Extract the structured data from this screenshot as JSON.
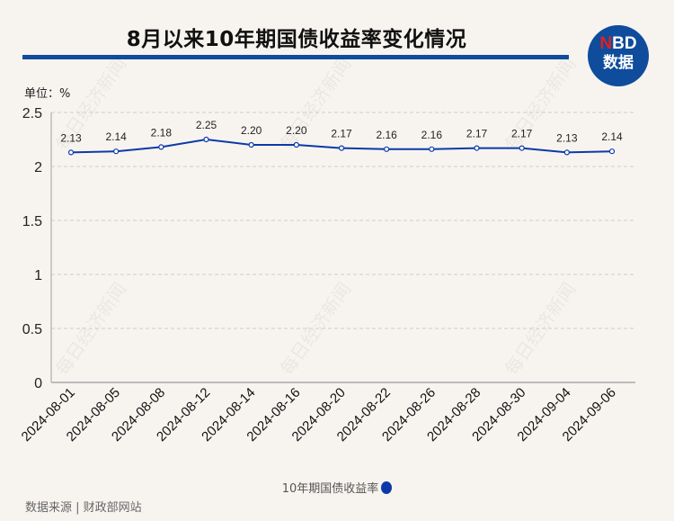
{
  "header": {
    "title": "8月以来10年期国债收益率变化情况"
  },
  "logo": {
    "line1_accent": "N",
    "line1_rest": "BD",
    "line2": "数据"
  },
  "watermark": "每日经济新闻",
  "source": "数据来源 | 财政部网站",
  "colors": {
    "line": "#0b3aa8",
    "title_bar": "#0f4c9c",
    "background": "#f7f4f0"
  },
  "chart_data": {
    "type": "line",
    "title": "8月以来10年期国债收益率变化情况",
    "unit_label": "单位：%",
    "categories": [
      "2024-08-01",
      "2024-08-05",
      "2024-08-08",
      "2024-08-12",
      "2024-08-14",
      "2024-08-16",
      "2024-08-20",
      "2024-08-22",
      "2024-08-26",
      "2024-08-28",
      "2024-08-30",
      "2024-09-04",
      "2024-09-06"
    ],
    "series": [
      {
        "name": "10年期国债收益率",
        "values": [
          2.13,
          2.14,
          2.18,
          2.25,
          2.2,
          2.2,
          2.17,
          2.16,
          2.16,
          2.17,
          2.17,
          2.13,
          2.14
        ]
      }
    ],
    "data_labels": [
      "2.13",
      "2.14",
      "2.18",
      "2.25",
      "2.20",
      "2.20",
      "2.17",
      "2.16",
      "2.16",
      "2.17",
      "2.17",
      "2.13",
      "2.14"
    ],
    "ylim": [
      0,
      2.5
    ],
    "yticks": [
      "0",
      "0.5",
      "1",
      "1.5",
      "2",
      "2.5"
    ],
    "grid": true,
    "legend": "bottom-center"
  }
}
